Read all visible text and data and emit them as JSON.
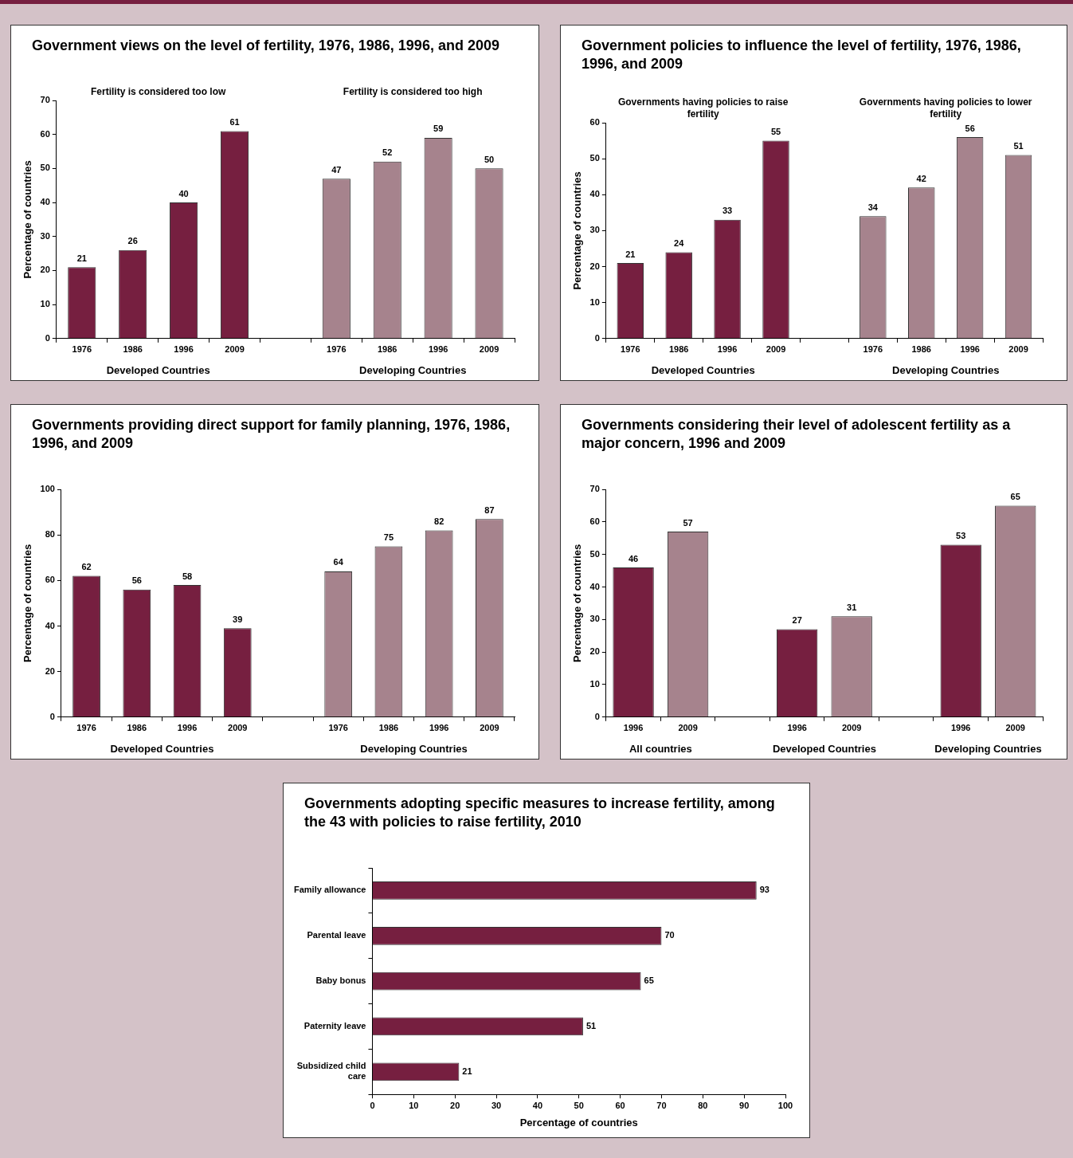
{
  "chart_data": [
    {
      "type": "bar",
      "title": "Government views on the level of fertility, 1976, 1986, 1996, and 2009",
      "ylabel": "Percentage of countries",
      "categories": [
        "1976",
        "1986",
        "1996",
        "2009",
        null,
        "1976",
        "1986",
        "1996",
        "2009"
      ],
      "series": [
        {
          "name": "Developed Countries",
          "color": "#761f40",
          "values": [
            21,
            26,
            40,
            61,
            null,
            null,
            null,
            null,
            null
          ]
        },
        {
          "name": "Developing Countries",
          "color": "#a6838d",
          "values": [
            null,
            null,
            null,
            null,
            null,
            47,
            52,
            59,
            50
          ]
        }
      ],
      "annotations": [
        "Fertility is considered too low",
        "Fertility is considered too high"
      ],
      "ylim": [
        0,
        70
      ],
      "yticks": [
        0,
        10,
        20,
        30,
        40,
        50,
        60,
        70
      ],
      "data_labels": true
    },
    {
      "type": "bar",
      "title": "Government policies to influence the level of fertility, 1976, 1986, 1996, and 2009",
      "ylabel": "Percentage of countries",
      "categories": [
        "1976",
        "1986",
        "1996",
        "2009",
        null,
        "1976",
        "1986",
        "1996",
        "2009"
      ],
      "series": [
        {
          "name": "Developed Countries",
          "color": "#761f40",
          "values": [
            21,
            24,
            33,
            55,
            null,
            null,
            null,
            null,
            null
          ]
        },
        {
          "name": "Developing Countries",
          "color": "#a6838d",
          "values": [
            null,
            null,
            null,
            null,
            null,
            34,
            42,
            56,
            51
          ]
        }
      ],
      "annotations": [
        "Governments having policies to raise fertility",
        "Governments having policies to lower fertility"
      ],
      "ylim": [
        0,
        60
      ],
      "yticks": [
        0,
        10,
        20,
        30,
        40,
        50,
        60
      ],
      "data_labels": true
    },
    {
      "type": "bar",
      "title": "Governments providing direct support for family planning, 1976, 1986, 1996, and 2009",
      "ylabel": "Percentage of countries",
      "categories": [
        "1976",
        "1986",
        "1996",
        "2009",
        null,
        "1976",
        "1986",
        "1996",
        "2009"
      ],
      "series": [
        {
          "name": "Developed Countries",
          "color": "#761f40",
          "values": [
            62,
            56,
            58,
            39,
            null,
            null,
            null,
            null,
            null
          ]
        },
        {
          "name": "Developing Countries",
          "color": "#a6838d",
          "values": [
            null,
            null,
            null,
            null,
            null,
            64,
            75,
            82,
            87
          ]
        }
      ],
      "ylim": [
        0,
        100
      ],
      "yticks": [
        0,
        20,
        40,
        60,
        80,
        100
      ],
      "data_labels": true
    },
    {
      "type": "bar",
      "title": "Governments considering their level of adolescent fertility as a major concern, 1996 and 2009",
      "ylabel": "Percentage of countries",
      "categories": [
        "1996",
        "2009",
        null,
        "1996",
        "2009",
        null,
        "1996",
        "2009"
      ],
      "series": [
        {
          "name": "All countries",
          "colors": [
            "#761f40",
            "#a6838d",
            null,
            null,
            null,
            null,
            null,
            null
          ],
          "values": [
            46,
            57,
            null,
            null,
            null,
            null,
            null,
            null
          ]
        },
        {
          "name": "Developed Countries",
          "colors": [
            null,
            null,
            null,
            "#761f40",
            "#a6838d",
            null,
            null,
            null
          ],
          "values": [
            null,
            null,
            null,
            27,
            31,
            null,
            null,
            null
          ]
        },
        {
          "name": "Developing Countries",
          "colors": [
            null,
            null,
            null,
            null,
            null,
            null,
            "#761f40",
            "#a6838d"
          ],
          "values": [
            null,
            null,
            null,
            null,
            null,
            null,
            53,
            65
          ]
        }
      ],
      "ylim": [
        0,
        70
      ],
      "yticks": [
        0,
        10,
        20,
        30,
        40,
        50,
        60,
        70
      ],
      "data_labels": true
    },
    {
      "type": "bar",
      "orientation": "horizontal",
      "title": "Governments adopting specific measures to increase fertility, among the 43 with policies to raise fertility, 2010",
      "xlabel": "Percentage of countries",
      "categories": [
        "Family allowance",
        "Parental leave",
        "Baby bonus",
        "Paternity leave",
        "Subsidized child care"
      ],
      "values": [
        93,
        70,
        65,
        51,
        21
      ],
      "color": "#761f40",
      "xlim": [
        0,
        100
      ],
      "xticks": [
        0,
        10,
        20,
        30,
        40,
        50,
        60,
        70,
        80,
        90,
        100
      ],
      "data_labels": true
    }
  ]
}
